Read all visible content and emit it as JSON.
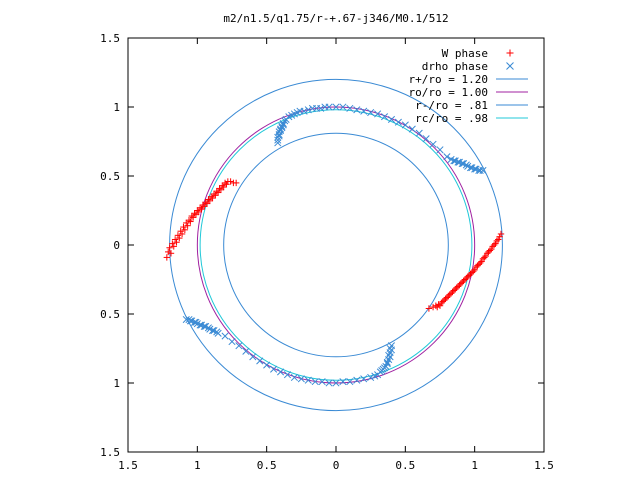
{
  "chart_data": {
    "type": "scatter",
    "title": "m2/n1.5/q1.75/r-+.67-j346/M0.1/512",
    "xlabel": "",
    "ylabel": "",
    "xlim": [
      -1.5,
      1.5
    ],
    "ylim": [
      -1.5,
      1.5
    ],
    "x_ticks": [
      {
        "value": -1.5,
        "label": "1.5"
      },
      {
        "value": -1.0,
        "label": "1"
      },
      {
        "value": -0.5,
        "label": "0.5"
      },
      {
        "value": 0.0,
        "label": "0"
      },
      {
        "value": 0.5,
        "label": "0.5"
      },
      {
        "value": 1.0,
        "label": "1"
      },
      {
        "value": 1.5,
        "label": "1.5"
      }
    ],
    "y_ticks": [
      {
        "value": 1.5,
        "label": "1.5"
      },
      {
        "value": 1.0,
        "label": "1"
      },
      {
        "value": 0.5,
        "label": "0.5"
      },
      {
        "value": 0.0,
        "label": "0"
      },
      {
        "value": -0.5,
        "label": "0.5"
      },
      {
        "value": -1.0,
        "label": "1"
      },
      {
        "value": -1.5,
        "label": "1.5"
      }
    ],
    "grid": false,
    "legend_position": "top-right",
    "circles": [
      {
        "name": "r+/ro = 1.20",
        "r": 1.2,
        "color": "#3a8ad4"
      },
      {
        "name": "ro/ro = 1.00",
        "r": 1.0,
        "color": "#a020a0"
      },
      {
        "name": "r-/ro = .81",
        "r": 0.81,
        "color": "#3a8ad4"
      },
      {
        "name": "rc/ro = .98",
        "r": 0.98,
        "color": "#20c8d8"
      }
    ],
    "series": [
      {
        "name": "W phase",
        "marker": "plus",
        "color": "#ff0000",
        "points": [
          [
            -1.22,
            -0.09
          ],
          [
            -1.21,
            -0.05
          ],
          [
            -1.2,
            -0.02
          ],
          [
            -1.18,
            0.01
          ],
          [
            -1.16,
            0.04
          ],
          [
            -1.14,
            0.07
          ],
          [
            -1.12,
            0.1
          ],
          [
            -1.1,
            0.13
          ],
          [
            -1.08,
            0.16
          ],
          [
            -1.06,
            0.18
          ],
          [
            -1.04,
            0.21
          ],
          [
            -1.02,
            0.23
          ],
          [
            -1.0,
            0.25
          ],
          [
            -0.98,
            0.27
          ],
          [
            -0.96,
            0.29
          ],
          [
            -0.94,
            0.31
          ],
          [
            -0.92,
            0.33
          ],
          [
            -0.9,
            0.35
          ],
          [
            -0.88,
            0.37
          ],
          [
            -0.86,
            0.39
          ],
          [
            -0.84,
            0.41
          ],
          [
            -0.82,
            0.43
          ],
          [
            -0.8,
            0.45
          ],
          [
            -0.78,
            0.46
          ],
          [
            -0.76,
            0.46
          ],
          [
            -0.74,
            0.45
          ],
          [
            -0.72,
            0.45
          ],
          [
            -1.17,
            -0.01
          ],
          [
            -1.13,
            0.05
          ],
          [
            -1.09,
            0.11
          ],
          [
            -1.05,
            0.17
          ],
          [
            -1.01,
            0.22
          ],
          [
            -0.97,
            0.26
          ],
          [
            -0.93,
            0.3
          ],
          [
            -0.89,
            0.34
          ],
          [
            -0.85,
            0.38
          ],
          [
            -0.81,
            0.42
          ],
          [
            -1.19,
            -0.06
          ],
          [
            -1.15,
            0.02
          ],
          [
            -1.11,
            0.08
          ],
          [
            -1.07,
            0.14
          ],
          [
            -1.03,
            0.2
          ],
          [
            -0.99,
            0.24
          ],
          [
            -0.95,
            0.28
          ],
          [
            -0.91,
            0.32
          ],
          [
            -0.87,
            0.36
          ],
          [
            -0.83,
            0.4
          ],
          [
            -0.79,
            0.44
          ],
          [
            0.67,
            -0.46
          ],
          [
            0.7,
            -0.45
          ],
          [
            0.72,
            -0.44
          ],
          [
            0.74,
            -0.43
          ],
          [
            0.76,
            -0.42
          ],
          [
            0.78,
            -0.4
          ],
          [
            0.8,
            -0.38
          ],
          [
            0.82,
            -0.36
          ],
          [
            0.84,
            -0.34
          ],
          [
            0.86,
            -0.32
          ],
          [
            0.88,
            -0.3
          ],
          [
            0.9,
            -0.28
          ],
          [
            0.92,
            -0.26
          ],
          [
            0.94,
            -0.24
          ],
          [
            0.96,
            -0.22
          ],
          [
            0.98,
            -0.2
          ],
          [
            1.0,
            -0.18
          ],
          [
            1.02,
            -0.15
          ],
          [
            1.04,
            -0.13
          ],
          [
            1.06,
            -0.1
          ],
          [
            1.08,
            -0.08
          ],
          [
            1.1,
            -0.05
          ],
          [
            1.12,
            -0.03
          ],
          [
            1.14,
            0.0
          ],
          [
            1.16,
            0.03
          ],
          [
            1.18,
            0.06
          ],
          [
            1.19,
            0.08
          ],
          [
            0.73,
            -0.45
          ],
          [
            0.77,
            -0.41
          ],
          [
            0.81,
            -0.37
          ],
          [
            0.85,
            -0.33
          ],
          [
            0.89,
            -0.29
          ],
          [
            0.93,
            -0.25
          ],
          [
            0.97,
            -0.21
          ],
          [
            1.01,
            -0.16
          ],
          [
            1.05,
            -0.12
          ],
          [
            1.09,
            -0.06
          ],
          [
            1.13,
            -0.01
          ],
          [
            1.17,
            0.04
          ],
          [
            0.75,
            -0.44
          ],
          [
            0.79,
            -0.39
          ],
          [
            0.83,
            -0.35
          ],
          [
            0.87,
            -0.31
          ],
          [
            0.91,
            -0.27
          ],
          [
            0.95,
            -0.23
          ],
          [
            0.99,
            -0.19
          ],
          [
            1.03,
            -0.14
          ],
          [
            1.07,
            -0.09
          ],
          [
            1.11,
            -0.04
          ],
          [
            1.15,
            0.01
          ]
        ]
      },
      {
        "name": "drho phase",
        "marker": "cross",
        "color": "#3a8ad4",
        "points": [
          [
            -0.42,
            0.74
          ],
          [
            -0.42,
            0.76
          ],
          [
            -0.42,
            0.78
          ],
          [
            -0.41,
            0.8
          ],
          [
            -0.41,
            0.82
          ],
          [
            -0.4,
            0.84
          ],
          [
            -0.39,
            0.86
          ],
          [
            -0.38,
            0.88
          ],
          [
            -0.37,
            0.9
          ],
          [
            -0.36,
            0.91
          ],
          [
            -0.34,
            0.93
          ],
          [
            -0.32,
            0.94
          ],
          [
            -0.3,
            0.95
          ],
          [
            -0.28,
            0.96
          ],
          [
            -0.26,
            0.97
          ],
          [
            -0.23,
            0.97
          ],
          [
            -0.2,
            0.98
          ],
          [
            -0.17,
            0.99
          ],
          [
            -0.14,
            0.99
          ],
          [
            -0.11,
            0.99
          ],
          [
            -0.08,
            1.0
          ],
          [
            -0.05,
            1.0
          ],
          [
            0.0,
            1.0
          ],
          [
            0.05,
            1.0
          ],
          [
            0.1,
            0.99
          ],
          [
            0.15,
            0.98
          ],
          [
            0.2,
            0.97
          ],
          [
            0.25,
            0.96
          ],
          [
            0.3,
            0.95
          ],
          [
            0.35,
            0.93
          ],
          [
            0.4,
            0.91
          ],
          [
            0.45,
            0.89
          ],
          [
            0.5,
            0.87
          ],
          [
            0.55,
            0.84
          ],
          [
            0.6,
            0.81
          ],
          [
            0.65,
            0.77
          ],
          [
            0.7,
            0.73
          ],
          [
            0.75,
            0.69
          ],
          [
            0.8,
            0.64
          ],
          [
            0.85,
            0.61
          ],
          [
            0.88,
            0.6
          ],
          [
            0.91,
            0.59
          ],
          [
            0.94,
            0.58
          ],
          [
            0.97,
            0.56
          ],
          [
            1.0,
            0.55
          ],
          [
            1.03,
            0.54
          ],
          [
            1.06,
            0.54
          ],
          [
            -0.41,
            0.79
          ],
          [
            -0.4,
            0.83
          ],
          [
            -0.39,
            0.85
          ],
          [
            -0.38,
            0.87
          ],
          [
            0.83,
            0.62
          ],
          [
            0.86,
            0.61
          ],
          [
            0.89,
            0.6
          ],
          [
            0.92,
            0.59
          ],
          [
            0.95,
            0.57
          ],
          [
            0.98,
            0.56
          ],
          [
            1.01,
            0.55
          ],
          [
            1.04,
            0.54
          ],
          [
            -1.08,
            -0.54
          ],
          [
            -1.06,
            -0.54
          ],
          [
            -1.04,
            -0.55
          ],
          [
            -1.02,
            -0.56
          ],
          [
            -1.0,
            -0.57
          ],
          [
            -0.97,
            -0.58
          ],
          [
            -0.94,
            -0.59
          ],
          [
            -0.91,
            -0.61
          ],
          [
            -0.88,
            -0.62
          ],
          [
            -0.85,
            -0.64
          ],
          [
            -0.8,
            -0.66
          ],
          [
            -0.75,
            -0.7
          ],
          [
            -0.7,
            -0.73
          ],
          [
            -0.65,
            -0.77
          ],
          [
            -0.6,
            -0.81
          ],
          [
            -0.55,
            -0.84
          ],
          [
            -0.5,
            -0.87
          ],
          [
            -0.45,
            -0.9
          ],
          [
            -0.4,
            -0.92
          ],
          [
            -0.35,
            -0.94
          ],
          [
            -0.3,
            -0.96
          ],
          [
            -0.25,
            -0.97
          ],
          [
            -0.2,
            -0.98
          ],
          [
            -0.15,
            -0.99
          ],
          [
            -0.1,
            -0.99
          ],
          [
            -0.05,
            -1.0
          ],
          [
            0.0,
            -1.0
          ],
          [
            0.05,
            -0.99
          ],
          [
            0.1,
            -0.99
          ],
          [
            0.15,
            -0.98
          ],
          [
            0.2,
            -0.97
          ],
          [
            0.25,
            -0.96
          ],
          [
            0.28,
            -0.95
          ],
          [
            0.3,
            -0.94
          ],
          [
            0.32,
            -0.92
          ],
          [
            0.34,
            -0.9
          ],
          [
            0.36,
            -0.88
          ],
          [
            0.37,
            -0.86
          ],
          [
            0.38,
            -0.83
          ],
          [
            0.39,
            -0.81
          ],
          [
            0.39,
            -0.78
          ],
          [
            0.4,
            -0.76
          ],
          [
            0.4,
            -0.73
          ],
          [
            -1.05,
            -0.55
          ],
          [
            -1.01,
            -0.56
          ],
          [
            -0.98,
            -0.58
          ],
          [
            -0.95,
            -0.59
          ],
          [
            -0.92,
            -0.6
          ],
          [
            -0.89,
            -0.62
          ],
          [
            -0.86,
            -0.63
          ],
          [
            0.33,
            -0.91
          ],
          [
            0.35,
            -0.89
          ],
          [
            0.37,
            -0.85
          ],
          [
            0.38,
            -0.8
          ],
          [
            0.39,
            -0.75
          ]
        ]
      }
    ]
  }
}
